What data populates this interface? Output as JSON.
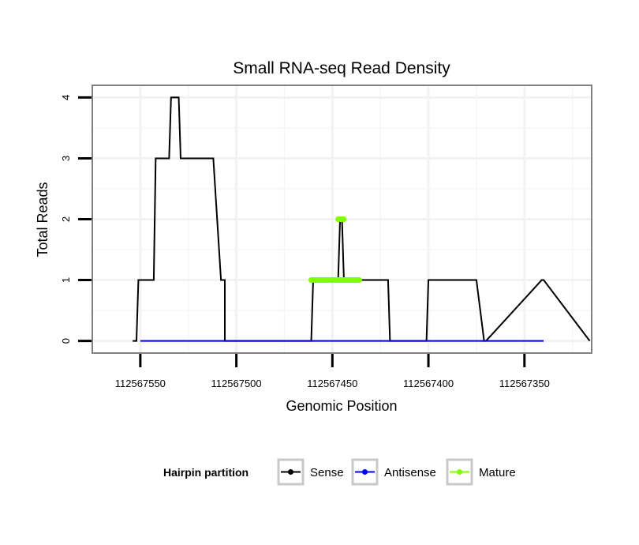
{
  "chart_data": {
    "type": "line",
    "title": "Small RNA-seq Read Density",
    "xlabel": "Genomic Position",
    "ylabel": "Total Reads",
    "x_reversed": true,
    "xlim": [
      112567575,
      112567315
    ],
    "ylim": [
      -0.2,
      4.2
    ],
    "xticks": [
      112567550,
      112567500,
      112567450,
      112567400,
      112567350
    ],
    "xtick_labels": [
      "112567550",
      "112567500",
      "112567450",
      "112567400",
      "112567350"
    ],
    "yticks": [
      0,
      1,
      2,
      3,
      4
    ],
    "ytick_labels": [
      "0",
      "1",
      "2",
      "3",
      "4"
    ],
    "grid": true,
    "legend": {
      "title": "Hairpin partition",
      "position": "bottom",
      "entries": [
        {
          "label": "Sense",
          "color": "#000000"
        },
        {
          "label": "Antisense",
          "color": "#0000ff"
        },
        {
          "label": "Mature",
          "color": "#7fff00"
        }
      ]
    },
    "series": [
      {
        "name": "Sense",
        "color": "#000000",
        "x": [
          112567554,
          112567552,
          112567551,
          112567543,
          112567542,
          112567535,
          112567534,
          112567530,
          112567529,
          112567522,
          112567521,
          112567521,
          112567513,
          112567512,
          112567508,
          112567506,
          112567506,
          112567487,
          112567473,
          112567461,
          112567460,
          112567453,
          112567449,
          112567447,
          112567446,
          112567445,
          112567444,
          112567441,
          112567425,
          112567421,
          112567420,
          112567406,
          112567401,
          112567400,
          112567375,
          112567371,
          112567370,
          112567341,
          112567340,
          112567316
        ],
        "y": [
          0,
          0,
          1,
          1,
          3,
          3,
          4,
          4,
          3,
          3,
          3,
          3,
          3,
          3,
          1,
          1,
          0,
          0,
          0,
          0,
          1,
          1,
          1,
          1,
          2,
          2,
          1,
          1,
          1,
          1,
          0,
          0,
          0,
          1,
          1,
          0,
          0,
          1,
          1,
          0
        ]
      },
      {
        "name": "Antisense",
        "color": "#0000ff",
        "x": [
          112567550,
          112567340
        ],
        "y": [
          0,
          0
        ]
      },
      {
        "name": "Mature",
        "color": "#7fff00",
        "segments": [
          {
            "x": [
              112567461,
              112567436
            ],
            "y": [
              1,
              1
            ]
          },
          {
            "x": [
              112567447,
              112567444
            ],
            "y": [
              2,
              2
            ]
          }
        ]
      }
    ]
  }
}
